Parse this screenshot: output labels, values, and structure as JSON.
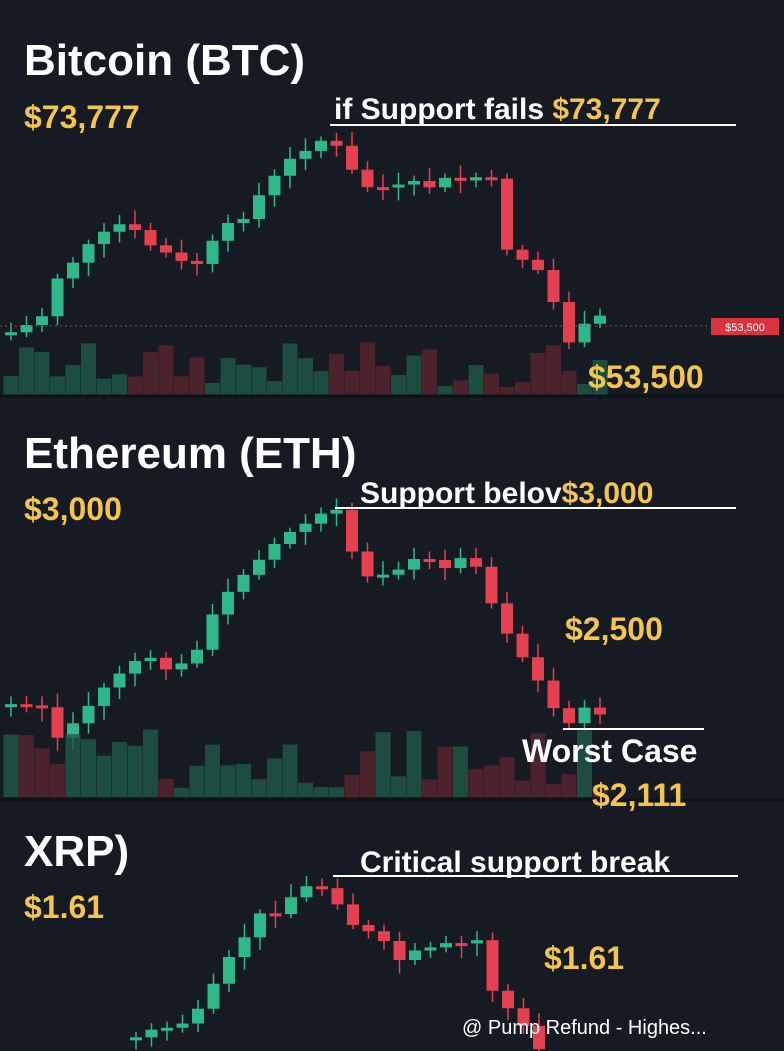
{
  "panels": [
    {
      "title": "Bitcoin (BTC)",
      "price": "$73,777",
      "headline": "if Support fails",
      "headline_price": "$73,777",
      "price_tag": "$53,500",
      "target": "$53,500"
    },
    {
      "title": "Ethereum (ETH)",
      "price": "$3,000",
      "headline": "Support belov",
      "headline_price": "$3,000",
      "target": "$2,500",
      "note": "Worst Case",
      "note_price": "$2,111"
    },
    {
      "title": "XRP)",
      "price": "$1.61",
      "headline": "Critical support break",
      "target": "$1.61"
    }
  ],
  "watermark": "@ Pump Refund - Highes..."
}
